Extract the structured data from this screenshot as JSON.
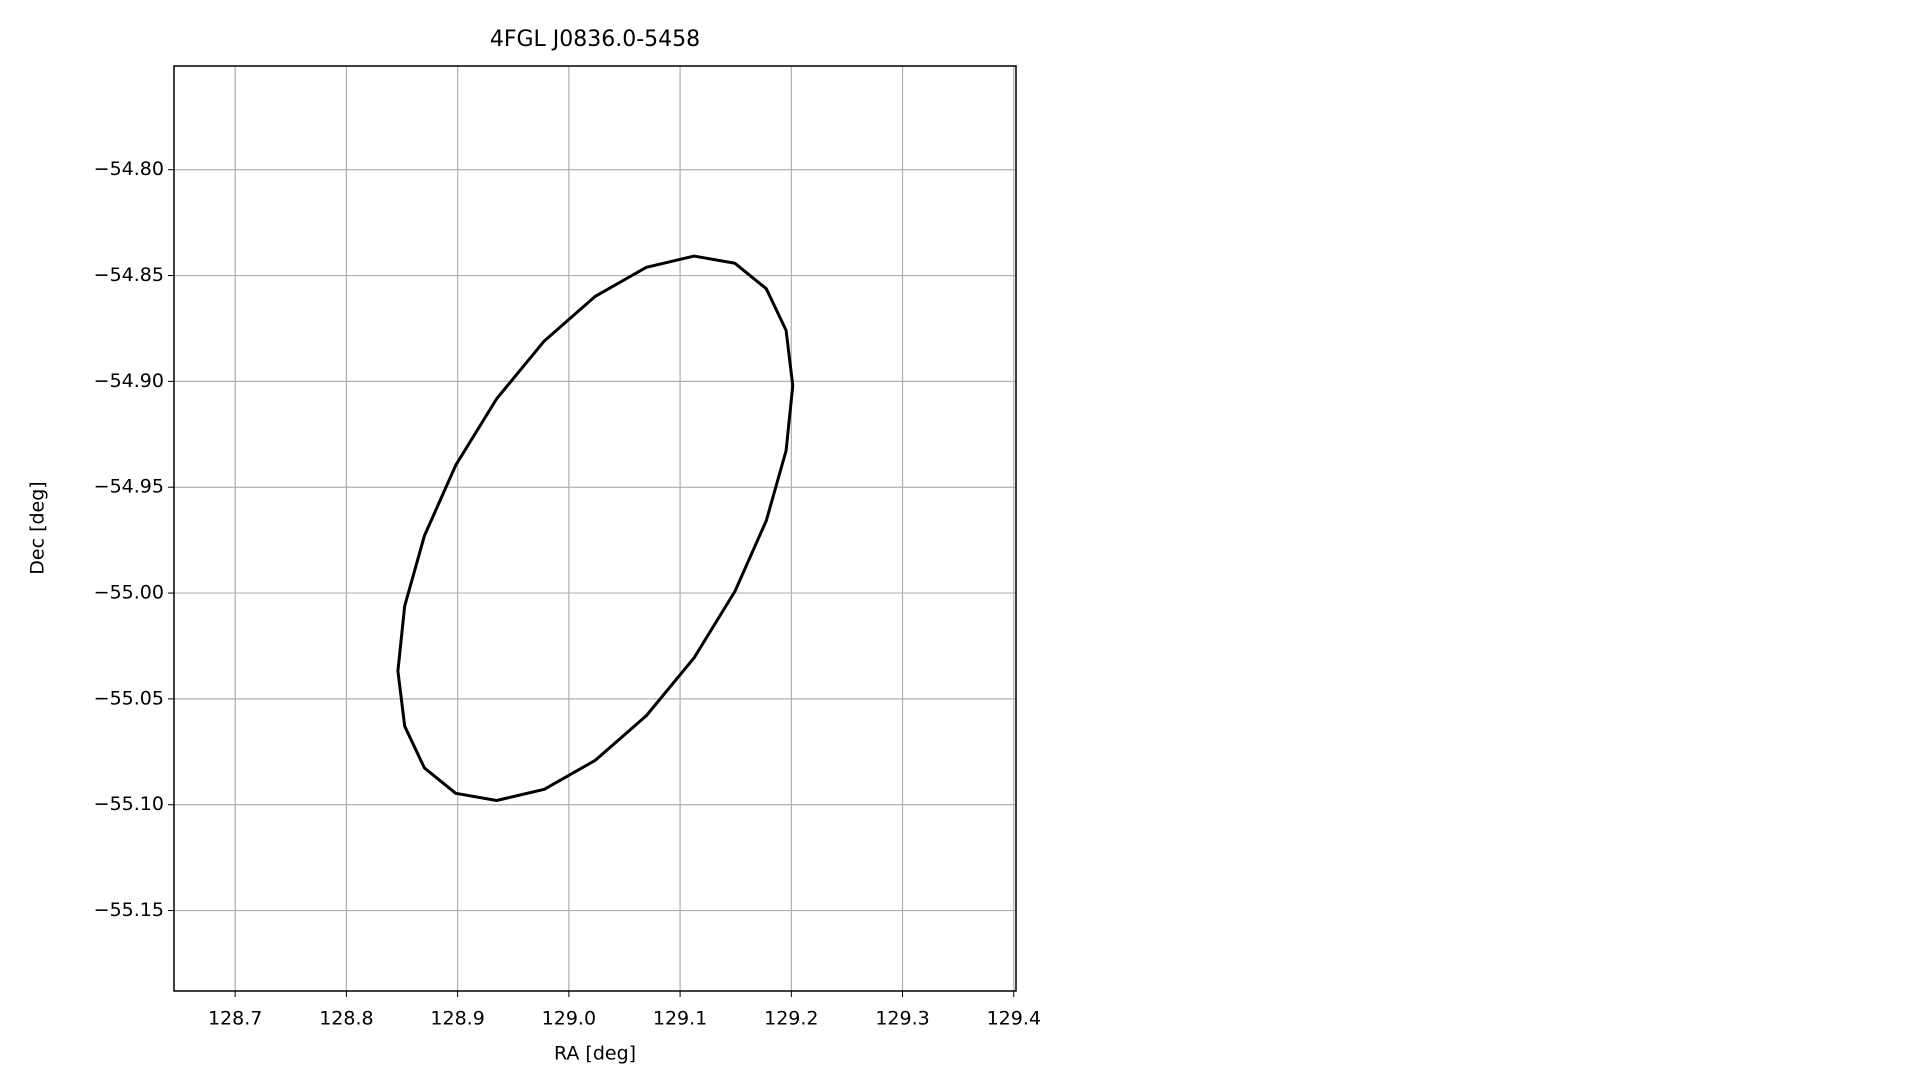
{
  "chart_data": {
    "type": "line",
    "title": "4FGL J0836.0-5458",
    "x_label": "RA [deg]",
    "y_label": "Dec [deg]",
    "x": [
      129.2013,
      129.1953,
      129.1775,
      129.1493,
      129.1126,
      129.0697,
      129.0238,
      128.9779,
      128.9351,
      128.8983,
      128.8701,
      128.8524,
      128.8463,
      128.8524,
      128.8701,
      128.8983,
      128.9351,
      128.9779,
      129.0238,
      129.0697,
      129.1126,
      129.1493,
      129.1775,
      129.1953,
      129.2013
    ],
    "values": [
      -54.902,
      -54.9327,
      -54.9658,
      -54.9992,
      -55.0306,
      -55.0579,
      -55.079,
      -55.0927,
      -55.098,
      -55.0946,
      -55.0826,
      -55.0629,
      -55.0368,
      -55.0061,
      -54.973,
      -54.9396,
      -54.9082,
      -54.8809,
      -54.8598,
      -54.8461,
      -54.8408,
      -54.8442,
      -54.8562,
      -54.8759,
      -54.902
    ],
    "color": "#000000",
    "xlim": [
      128.645,
      129.402
    ],
    "ylim": [
      -55.188,
      -54.751
    ],
    "xticks": [
      128.7,
      128.8,
      128.9,
      {
        "value": 129.0,
        "label": "129.0"
      },
      129.1,
      129.2,
      129.3,
      129.4
    ],
    "yticks": [
      {
        "value": -54.8,
        "label": "−54.80"
      },
      {
        "value": -54.85,
        "label": "−54.85"
      },
      {
        "value": -54.9,
        "label": "−54.90"
      },
      {
        "value": -54.95,
        "label": "−54.95"
      },
      {
        "value": -55.0,
        "label": "−55.00"
      },
      {
        "value": -55.05,
        "label": "−55.05"
      },
      {
        "value": -55.1,
        "label": "−55.10"
      },
      {
        "value": -55.15,
        "label": "−55.15"
      }
    ],
    "grid": true
  }
}
